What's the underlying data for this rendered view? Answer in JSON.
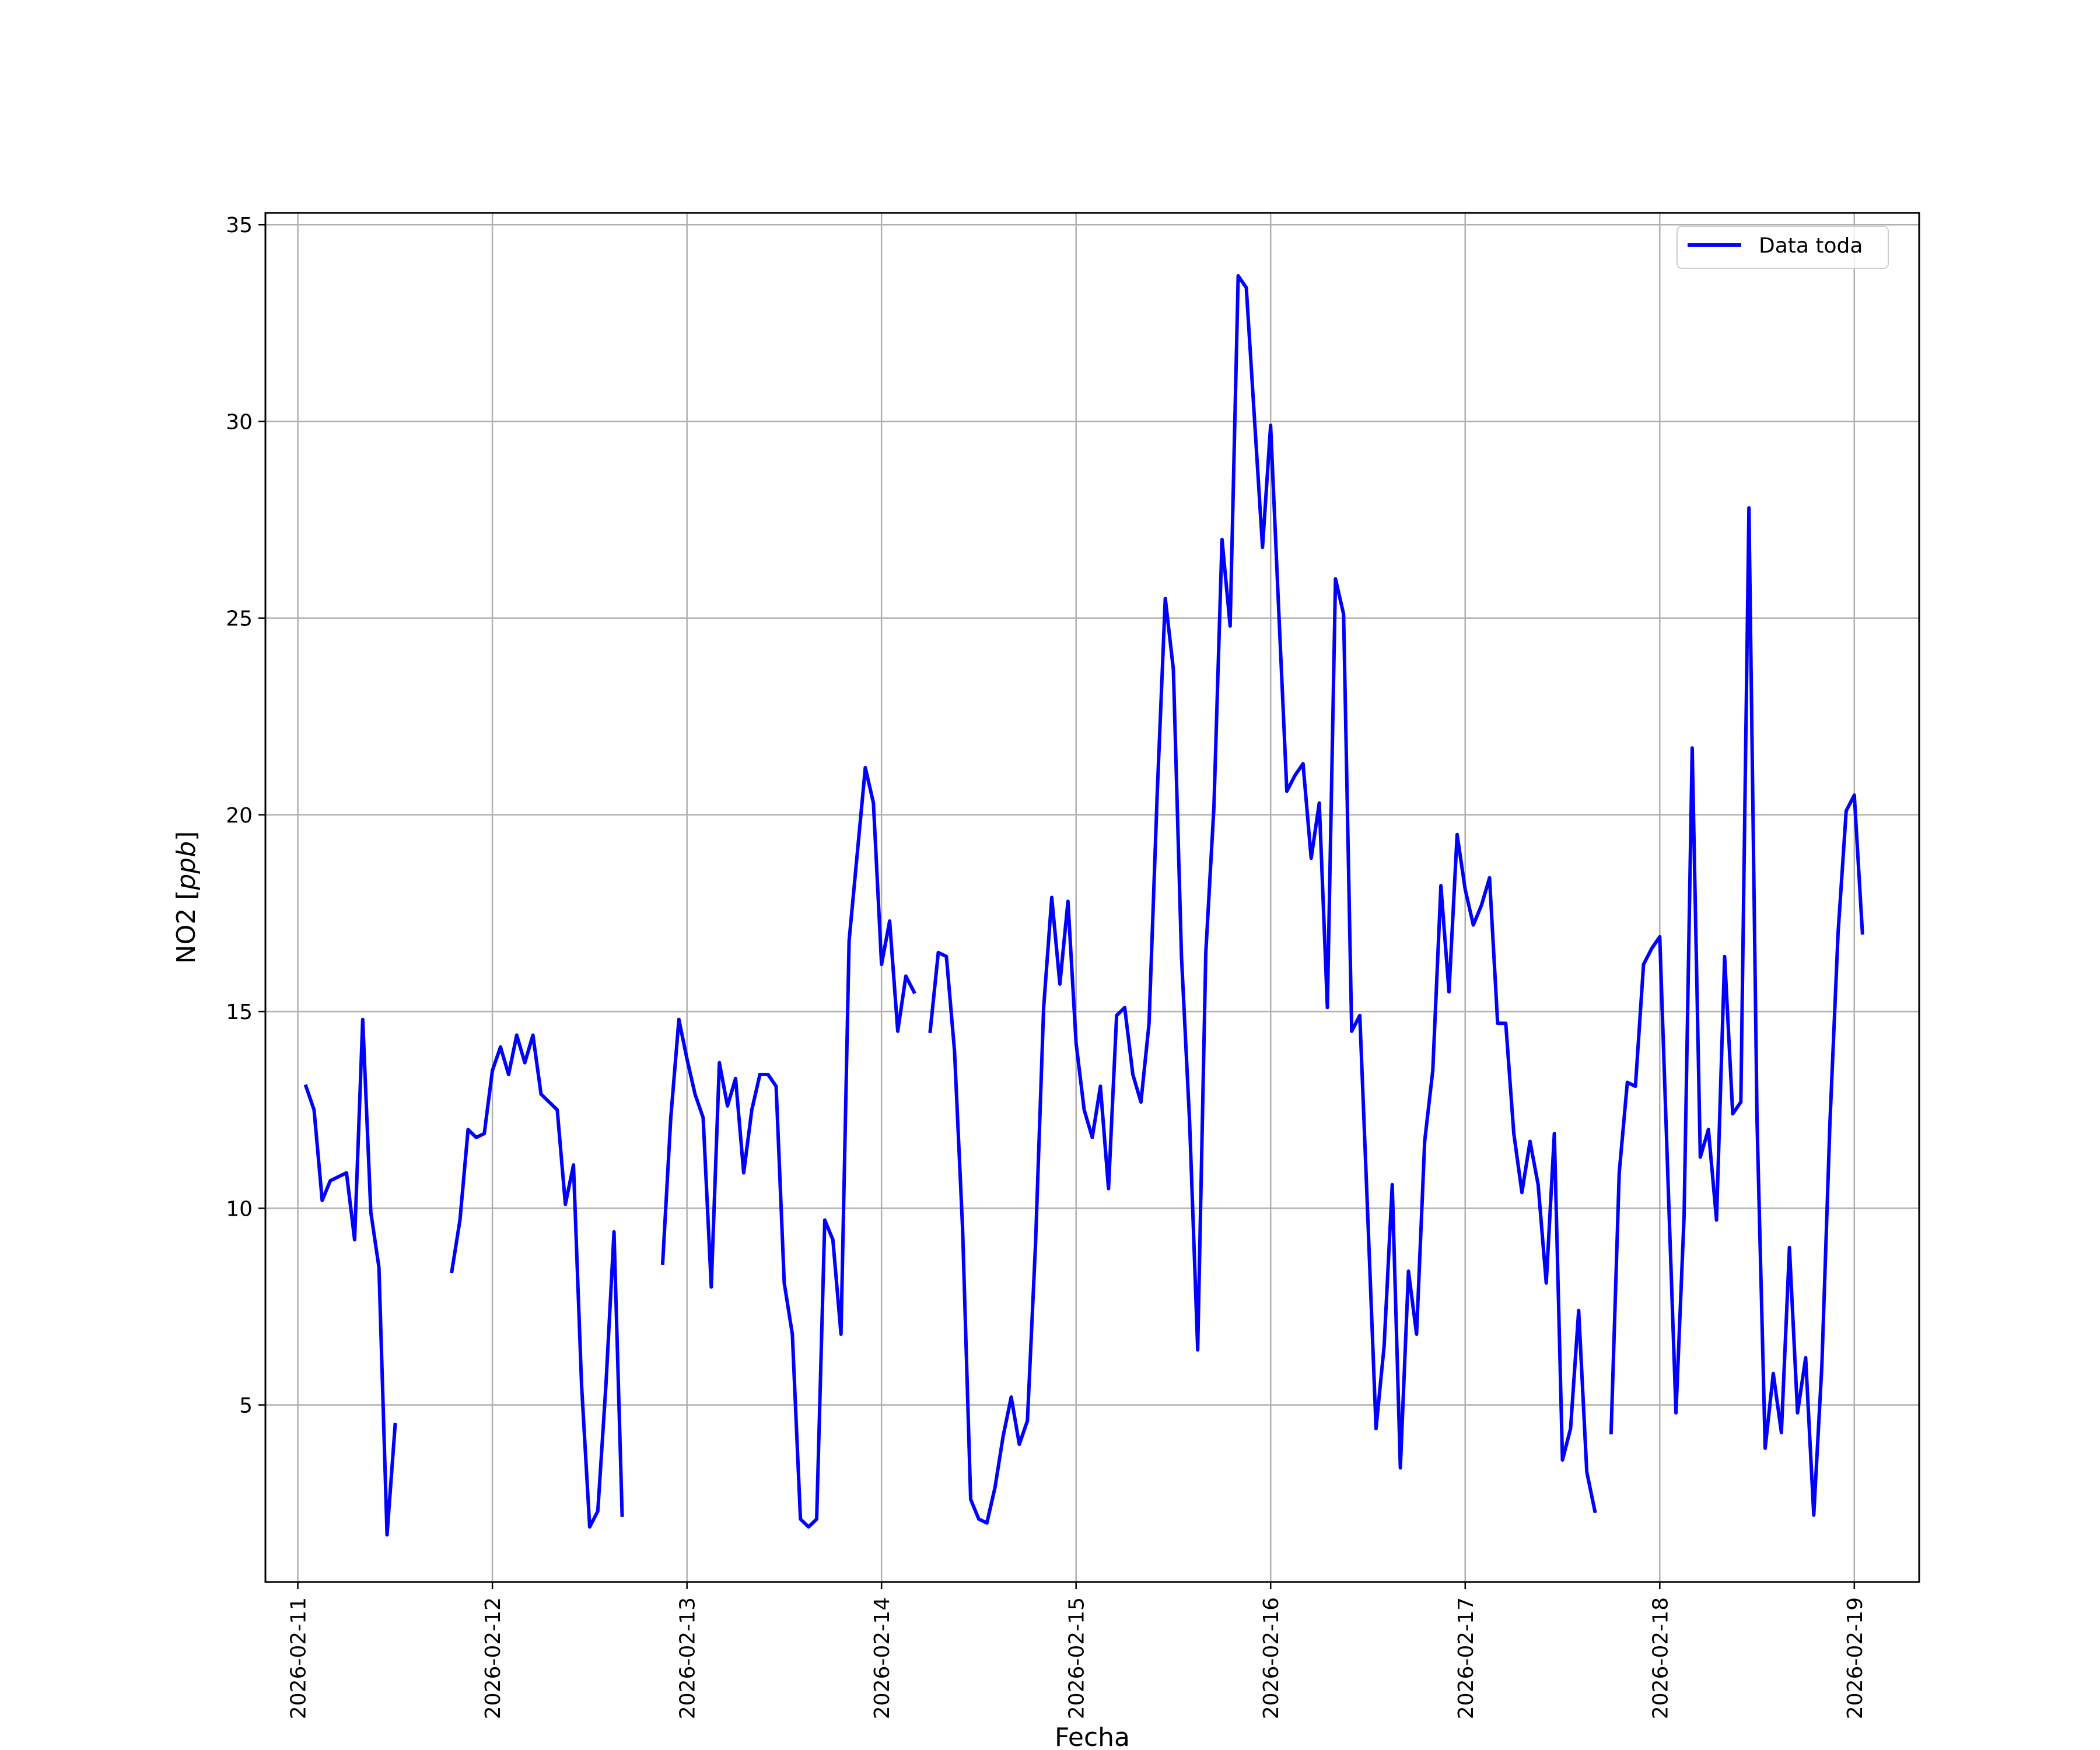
{
  "chart_data": {
    "type": "line",
    "title": "",
    "xlabel": "Fecha",
    "ylabel_main": "NO2",
    "ylabel_unit": "ppb",
    "x_ticks": [
      "2026-02-11",
      "2026-02-12",
      "2026-02-13",
      "2026-02-14",
      "2026-02-15",
      "2026-02-16",
      "2026-02-17",
      "2026-02-18",
      "2026-02-19"
    ],
    "y_ticks": [
      5,
      10,
      15,
      20,
      25,
      30,
      35
    ],
    "xlim": [
      "2026-02-10 20:00",
      "2026-02-19 08:00"
    ],
    "ylim": [
      0.5,
      35.3
    ],
    "grid": true,
    "legend_position": "top-right",
    "series": [
      {
        "name": "Data toda",
        "color": "#0000ff",
        "points": [
          [
            "2026-02-11 01:00",
            13.1
          ],
          [
            "2026-02-11 02:00",
            12.5
          ],
          [
            "2026-02-11 03:00",
            10.2
          ],
          [
            "2026-02-11 04:00",
            10.7
          ],
          [
            "2026-02-11 06:00",
            10.9
          ],
          [
            "2026-02-11 07:00",
            9.2
          ],
          [
            "2026-02-11 08:00",
            14.8
          ],
          [
            "2026-02-11 09:00",
            9.9
          ],
          [
            "2026-02-11 10:00",
            8.5
          ],
          [
            "2026-02-11 11:00",
            1.7
          ],
          [
            "2026-02-11 12:00",
            4.5
          ],
          null,
          [
            "2026-02-11 19:00",
            8.4
          ],
          [
            "2026-02-11 20:00",
            9.7
          ],
          [
            "2026-02-11 21:00",
            12.0
          ],
          [
            "2026-02-11 22:00",
            11.8
          ],
          [
            "2026-02-11 23:00",
            11.9
          ],
          [
            "2026-02-12 00:00",
            13.5
          ],
          [
            "2026-02-12 01:00",
            14.1
          ],
          [
            "2026-02-12 02:00",
            13.4
          ],
          [
            "2026-02-12 03:00",
            14.4
          ],
          [
            "2026-02-12 04:00",
            13.7
          ],
          [
            "2026-02-12 05:00",
            14.4
          ],
          [
            "2026-02-12 06:00",
            12.9
          ],
          [
            "2026-02-12 07:00",
            12.7
          ],
          [
            "2026-02-12 08:00",
            12.5
          ],
          [
            "2026-02-12 09:00",
            10.1
          ],
          [
            "2026-02-12 10:00",
            11.1
          ],
          [
            "2026-02-12 11:00",
            5.5
          ],
          [
            "2026-02-12 12:00",
            1.9
          ],
          [
            "2026-02-12 13:00",
            2.3
          ],
          [
            "2026-02-12 14:00",
            5.5
          ],
          [
            "2026-02-12 15:00",
            9.4
          ],
          [
            "2026-02-12 16:00",
            2.2
          ],
          null,
          [
            "2026-02-12 21:00",
            8.6
          ],
          [
            "2026-02-12 22:00",
            12.3
          ],
          [
            "2026-02-12 23:00",
            14.8
          ],
          [
            "2026-02-13 00:00",
            13.8
          ],
          [
            "2026-02-13 01:00",
            12.9
          ],
          [
            "2026-02-13 02:00",
            12.3
          ],
          [
            "2026-02-13 03:00",
            8.0
          ],
          [
            "2026-02-13 04:00",
            13.7
          ],
          [
            "2026-02-13 05:00",
            12.6
          ],
          [
            "2026-02-13 06:00",
            13.3
          ],
          [
            "2026-02-13 07:00",
            10.9
          ],
          [
            "2026-02-13 08:00",
            12.5
          ],
          [
            "2026-02-13 09:00",
            13.4
          ],
          [
            "2026-02-13 10:00",
            13.4
          ],
          [
            "2026-02-13 11:00",
            13.1
          ],
          [
            "2026-02-13 12:00",
            8.1
          ],
          [
            "2026-02-13 13:00",
            6.8
          ],
          [
            "2026-02-13 14:00",
            2.1
          ],
          [
            "2026-02-13 15:00",
            1.9
          ],
          [
            "2026-02-13 16:00",
            2.1
          ],
          [
            "2026-02-13 17:00",
            9.7
          ],
          [
            "2026-02-13 18:00",
            9.2
          ],
          [
            "2026-02-13 19:00",
            6.8
          ],
          [
            "2026-02-13 20:00",
            16.8
          ],
          [
            "2026-02-13 21:00",
            19.0
          ],
          [
            "2026-02-13 22:00",
            21.2
          ],
          [
            "2026-02-13 23:00",
            20.3
          ],
          [
            "2026-02-14 00:00",
            16.2
          ],
          [
            "2026-02-14 01:00",
            17.3
          ],
          [
            "2026-02-14 02:00",
            14.5
          ],
          [
            "2026-02-14 03:00",
            15.9
          ],
          [
            "2026-02-14 04:00",
            15.5
          ],
          null,
          [
            "2026-02-14 06:00",
            14.5
          ],
          [
            "2026-02-14 07:00",
            16.5
          ],
          [
            "2026-02-14 08:00",
            16.4
          ],
          [
            "2026-02-14 09:00",
            14.0
          ],
          [
            "2026-02-14 10:00",
            9.5
          ],
          [
            "2026-02-14 11:00",
            2.6
          ],
          [
            "2026-02-14 12:00",
            2.1
          ],
          [
            "2026-02-14 13:00",
            2.0
          ],
          [
            "2026-02-14 14:00",
            2.9
          ],
          [
            "2026-02-14 15:00",
            4.2
          ],
          [
            "2026-02-14 16:00",
            5.2
          ],
          [
            "2026-02-14 17:00",
            4.0
          ],
          [
            "2026-02-14 18:00",
            4.6
          ],
          [
            "2026-02-14 19:00",
            9.1
          ],
          [
            "2026-02-14 20:00",
            15.1
          ],
          [
            "2026-02-14 21:00",
            17.9
          ],
          [
            "2026-02-14 22:00",
            15.7
          ],
          [
            "2026-02-14 23:00",
            17.8
          ],
          [
            "2026-02-15 00:00",
            14.2
          ],
          [
            "2026-02-15 01:00",
            12.5
          ],
          [
            "2026-02-15 02:00",
            11.8
          ],
          [
            "2026-02-15 03:00",
            13.1
          ],
          [
            "2026-02-15 04:00",
            10.5
          ],
          [
            "2026-02-15 05:00",
            14.9
          ],
          [
            "2026-02-15 06:00",
            15.1
          ],
          [
            "2026-02-15 07:00",
            13.4
          ],
          [
            "2026-02-15 08:00",
            12.7
          ],
          [
            "2026-02-15 09:00",
            14.7
          ],
          [
            "2026-02-15 10:00",
            20.5
          ],
          [
            "2026-02-15 11:00",
            25.5
          ],
          [
            "2026-02-15 12:00",
            23.7
          ],
          [
            "2026-02-15 13:00",
            16.4
          ],
          [
            "2026-02-15 14:00",
            12.2
          ],
          [
            "2026-02-15 15:00",
            6.4
          ],
          [
            "2026-02-15 16:00",
            16.5
          ],
          [
            "2026-02-15 17:00",
            20.2
          ],
          [
            "2026-02-15 18:00",
            27.0
          ],
          [
            "2026-02-15 19:00",
            24.8
          ],
          [
            "2026-02-15 20:00",
            33.7
          ],
          [
            "2026-02-15 21:00",
            33.4
          ],
          [
            "2026-02-15 22:00",
            30.1
          ],
          [
            "2026-02-15 23:00",
            26.8
          ],
          [
            "2026-02-16 00:00",
            29.9
          ],
          [
            "2026-02-16 01:00",
            25.2
          ],
          [
            "2026-02-16 02:00",
            20.6
          ],
          [
            "2026-02-16 03:00",
            21.0
          ],
          [
            "2026-02-16 04:00",
            21.3
          ],
          [
            "2026-02-16 05:00",
            18.9
          ],
          [
            "2026-02-16 06:00",
            20.3
          ],
          [
            "2026-02-16 07:00",
            15.1
          ],
          [
            "2026-02-16 08:00",
            26.0
          ],
          [
            "2026-02-16 09:00",
            25.1
          ],
          [
            "2026-02-16 10:00",
            14.5
          ],
          [
            "2026-02-16 11:00",
            14.9
          ],
          [
            "2026-02-16 12:00",
            9.7
          ],
          [
            "2026-02-16 13:00",
            4.4
          ],
          [
            "2026-02-16 14:00",
            6.5
          ],
          [
            "2026-02-16 15:00",
            10.6
          ],
          [
            "2026-02-16 16:00",
            3.4
          ],
          [
            "2026-02-16 17:00",
            8.4
          ],
          [
            "2026-02-16 18:00",
            6.8
          ],
          [
            "2026-02-16 19:00",
            11.7
          ],
          [
            "2026-02-16 20:00",
            13.5
          ],
          [
            "2026-02-16 21:00",
            18.2
          ],
          [
            "2026-02-16 22:00",
            15.5
          ],
          [
            "2026-02-16 23:00",
            19.5
          ],
          [
            "2026-02-17 00:00",
            18.1
          ],
          [
            "2026-02-17 01:00",
            17.2
          ],
          [
            "2026-02-17 02:00",
            17.7
          ],
          [
            "2026-02-17 03:00",
            18.4
          ],
          [
            "2026-02-17 04:00",
            14.7
          ],
          [
            "2026-02-17 05:00",
            14.7
          ],
          [
            "2026-02-17 06:00",
            11.9
          ],
          [
            "2026-02-17 07:00",
            10.4
          ],
          [
            "2026-02-17 08:00",
            11.7
          ],
          [
            "2026-02-17 09:00",
            10.6
          ],
          [
            "2026-02-17 10:00",
            8.1
          ],
          [
            "2026-02-17 11:00",
            11.9
          ],
          [
            "2026-02-17 12:00",
            3.6
          ],
          [
            "2026-02-17 13:00",
            4.4
          ],
          [
            "2026-02-17 14:00",
            7.4
          ],
          [
            "2026-02-17 15:00",
            3.3
          ],
          [
            "2026-02-17 16:00",
            2.3
          ],
          null,
          [
            "2026-02-17 18:00",
            4.3
          ],
          [
            "2026-02-17 19:00",
            10.9
          ],
          [
            "2026-02-17 20:00",
            13.2
          ],
          [
            "2026-02-17 21:00",
            13.1
          ],
          [
            "2026-02-17 22:00",
            16.2
          ],
          [
            "2026-02-17 23:00",
            16.6
          ],
          [
            "2026-02-18 00:00",
            16.9
          ],
          [
            "2026-02-18 01:00",
            10.8
          ],
          [
            "2026-02-18 02:00",
            4.8
          ],
          [
            "2026-02-18 03:00",
            9.8
          ],
          [
            "2026-02-18 04:00",
            21.7
          ],
          [
            "2026-02-18 05:00",
            11.3
          ],
          [
            "2026-02-18 06:00",
            12.0
          ],
          [
            "2026-02-18 07:00",
            9.7
          ],
          [
            "2026-02-18 08:00",
            16.4
          ],
          [
            "2026-02-18 09:00",
            12.4
          ],
          [
            "2026-02-18 10:00",
            12.7
          ],
          [
            "2026-02-18 11:00",
            27.8
          ],
          [
            "2026-02-18 12:00",
            12.2
          ],
          [
            "2026-02-18 13:00",
            3.9
          ],
          [
            "2026-02-18 14:00",
            5.8
          ],
          [
            "2026-02-18 15:00",
            4.3
          ],
          [
            "2026-02-18 16:00",
            9.0
          ],
          [
            "2026-02-18 17:00",
            4.8
          ],
          [
            "2026-02-18 18:00",
            6.2
          ],
          [
            "2026-02-18 19:00",
            2.2
          ],
          [
            "2026-02-18 20:00",
            6.0
          ],
          [
            "2026-02-18 21:00",
            12.2
          ],
          [
            "2026-02-18 22:00",
            17.0
          ],
          [
            "2026-02-18 23:00",
            20.1
          ],
          [
            "2026-02-19 00:00",
            20.5
          ],
          [
            "2026-02-19 01:00",
            17.0
          ]
        ]
      }
    ]
  }
}
